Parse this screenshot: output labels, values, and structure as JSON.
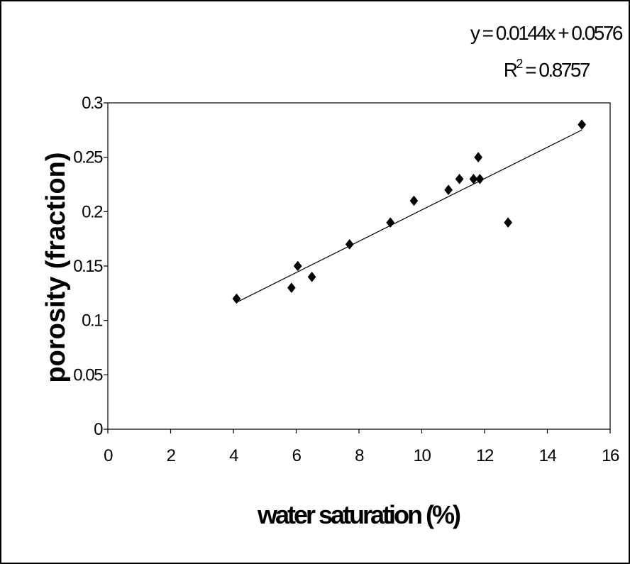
{
  "chart_data": {
    "type": "scatter",
    "title": "",
    "xlabel": "water saturation (%)",
    "ylabel": "porosity (fraction)",
    "xlim": [
      0,
      16
    ],
    "ylim": [
      0,
      0.3
    ],
    "x_ticks": [
      "0",
      "2",
      "4",
      "6",
      "8",
      "10",
      "12",
      "14",
      "16"
    ],
    "y_ticks": [
      "0",
      "0.05",
      "0.1",
      "0.15",
      "0.2",
      "0.25",
      "0.3"
    ],
    "grid": false,
    "legend": "none",
    "marker": "diamond",
    "marker_color": "#000000",
    "points": [
      {
        "x": 4.1,
        "y": 0.12
      },
      {
        "x": 5.85,
        "y": 0.13
      },
      {
        "x": 6.05,
        "y": 0.15
      },
      {
        "x": 6.5,
        "y": 0.14
      },
      {
        "x": 7.7,
        "y": 0.17
      },
      {
        "x": 9.0,
        "y": 0.19
      },
      {
        "x": 9.75,
        "y": 0.21
      },
      {
        "x": 10.85,
        "y": 0.22
      },
      {
        "x": 11.2,
        "y": 0.23
      },
      {
        "x": 11.65,
        "y": 0.23
      },
      {
        "x": 11.8,
        "y": 0.25
      },
      {
        "x": 11.85,
        "y": 0.23
      },
      {
        "x": 12.75,
        "y": 0.19
      },
      {
        "x": 15.1,
        "y": 0.28
      }
    ],
    "trendline": {
      "type": "linear",
      "slope": 0.0144,
      "intercept": 0.0576,
      "x_range": [
        4.1,
        15.1
      ],
      "equation_label": "y = 0.0144x + 0.0576",
      "r2_label_prefix": "R",
      "r2_label_sup": "2",
      "r2_label_value": " = 0.8757"
    }
  }
}
